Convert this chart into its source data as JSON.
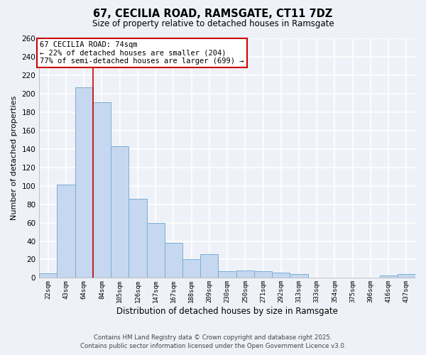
{
  "title": "67, CECILIA ROAD, RAMSGATE, CT11 7DZ",
  "subtitle": "Size of property relative to detached houses in Ramsgate",
  "xlabel": "Distribution of detached houses by size in Ramsgate",
  "ylabel": "Number of detached properties",
  "categories": [
    "22sqm",
    "43sqm",
    "64sqm",
    "84sqm",
    "105sqm",
    "126sqm",
    "147sqm",
    "167sqm",
    "188sqm",
    "209sqm",
    "230sqm",
    "250sqm",
    "271sqm",
    "292sqm",
    "313sqm",
    "333sqm",
    "354sqm",
    "375sqm",
    "396sqm",
    "416sqm",
    "437sqm"
  ],
  "values": [
    5,
    101,
    207,
    191,
    143,
    86,
    60,
    38,
    20,
    26,
    7,
    8,
    7,
    6,
    4,
    0,
    0,
    0,
    0,
    3,
    4
  ],
  "bar_color": "#c5d8f0",
  "bar_edge_color": "#7aadd4",
  "property_line_color": "#cc0000",
  "property_line_x": 2.5,
  "annotation_text": "67 CECILIA ROAD: 74sqm\n← 22% of detached houses are smaller (204)\n77% of semi-detached houses are larger (699) →",
  "annotation_box_color": "#ffffff",
  "annotation_box_edge_color": "#cc0000",
  "ylim": [
    0,
    260
  ],
  "yticks": [
    0,
    20,
    40,
    60,
    80,
    100,
    120,
    140,
    160,
    180,
    200,
    220,
    240,
    260
  ],
  "bg_color": "#eef2f8",
  "grid_color": "#ffffff",
  "footer_line1": "Contains HM Land Registry data © Crown copyright and database right 2025.",
  "footer_line2": "Contains public sector information licensed under the Open Government Licence v3.0."
}
